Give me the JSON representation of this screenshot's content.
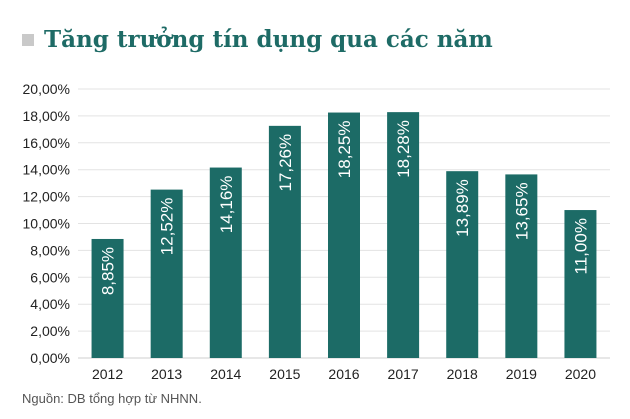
{
  "title": "Tăng trưởng tín dụng qua các năm",
  "source": "Nguồn: DB tổng hợp từ NHNN.",
  "colors": {
    "bar": "#1c6b66",
    "bar_label": "#ffffff",
    "grid": "#e3e3e3",
    "axis": "#cfcfcf",
    "text": "#222222",
    "title": "#1e6b66"
  },
  "chart_data": {
    "type": "bar",
    "categories": [
      "2012",
      "2013",
      "2014",
      "2015",
      "2016",
      "2017",
      "2018",
      "2019",
      "2020"
    ],
    "values": [
      8.85,
      12.52,
      14.16,
      17.26,
      18.25,
      18.28,
      13.89,
      13.65,
      11.0
    ],
    "data_labels": [
      "8,85%",
      "12,52%",
      "14,16%",
      "17,26%",
      "18,25%",
      "18,28%",
      "13,89%",
      "13,65%",
      "11,00%"
    ],
    "y_ticks": [
      "0,00%",
      "2,00%",
      "4,00%",
      "6,00%",
      "8,00%",
      "10,00%",
      "12,00%",
      "14,00%",
      "16,00%",
      "18,00%",
      "20,00%"
    ],
    "ylim": [
      0,
      20
    ],
    "grid": true,
    "legend": "none",
    "title": "Tăng trưởng tín dụng qua các năm",
    "xlabel": "",
    "ylabel": ""
  }
}
